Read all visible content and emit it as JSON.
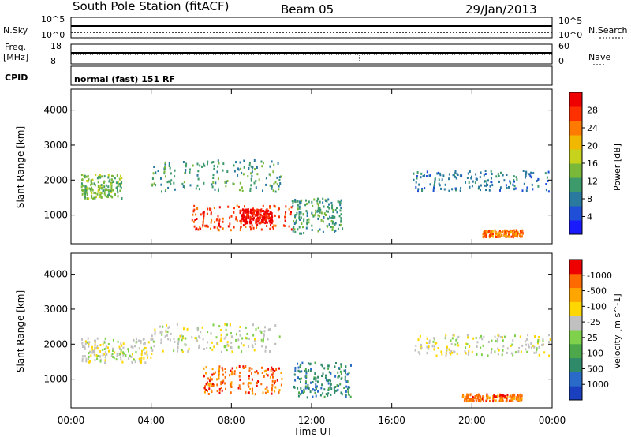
{
  "header": {
    "station": "South Pole Station (fitACF)",
    "beam": "Beam 05",
    "date": "29/Jan/2013"
  },
  "top_panels": {
    "nsky_label": "N.Sky",
    "nsky_ticks": [
      "10^5",
      "10^0"
    ],
    "nsearch_label": "N.Search",
    "nsearch_ticks": [
      "10^5",
      "10^0"
    ],
    "freq_label_1": "Freq.",
    "freq_label_2": "[MHz]",
    "freq_ticks": [
      "18",
      "8"
    ],
    "nave_label": "Nave",
    "nave_ticks": [
      "60",
      "0"
    ],
    "cpid_label": "CPID",
    "cpid_value": "normal (fast) 151 RF"
  },
  "chart_data": [
    {
      "type": "heatmap",
      "name": "power",
      "ylabel": "Slant Range [km]",
      "xlabel": "Time UT",
      "x_ticks": [
        "00:00",
        "04:00",
        "08:00",
        "12:00",
        "16:00",
        "20:00",
        "00:00"
      ],
      "xlim_hours": [
        0,
        24
      ],
      "y_ticks": [
        1000,
        2000,
        3000,
        4000
      ],
      "ylim": [
        180,
        4600
      ],
      "colorbar_label": "Power [dB]",
      "colorbar_ticks": [
        "4",
        "8",
        "12",
        "16",
        "20",
        "24",
        "28"
      ],
      "colorbar_colors": [
        "#1a1aff",
        "#1f4fd6",
        "#2a7aa0",
        "#3d9a6a",
        "#7ab83a",
        "#c6d21c",
        "#f2b800",
        "#ff7a00",
        "#ff3000",
        "#ee0000"
      ],
      "regions": [
        {
          "x": [
            0.5,
            2.5
          ],
          "y": [
            1500,
            2200
          ],
          "level": 4
        },
        {
          "x": [
            4.0,
            10.5
          ],
          "y": [
            1700,
            2600
          ],
          "level": 3
        },
        {
          "x": [
            6.0,
            11.0
          ],
          "y": [
            600,
            1300
          ],
          "level": 8
        },
        {
          "x": [
            8.5,
            10.0
          ],
          "y": [
            800,
            1200
          ],
          "level": 9
        },
        {
          "x": [
            11.0,
            13.5
          ],
          "y": [
            500,
            1500
          ],
          "level": 3
        },
        {
          "x": [
            17.0,
            23.9
          ],
          "y": [
            1700,
            2300
          ],
          "level": 2
        },
        {
          "x": [
            20.5,
            22.5
          ],
          "y": [
            400,
            600
          ],
          "level": 7
        }
      ]
    },
    {
      "type": "heatmap",
      "name": "velocity",
      "ylabel": "Slant Range [km]",
      "xlabel": "Time UT",
      "x_ticks": [
        "00:00",
        "04:00",
        "08:00",
        "12:00",
        "16:00",
        "20:00",
        "00:00"
      ],
      "xlim_hours": [
        0,
        24
      ],
      "y_ticks": [
        1000,
        2000,
        3000,
        4000
      ],
      "ylim": [
        180,
        4600
      ],
      "colorbar_label": "Velocity [m s^-1]",
      "colorbar_ticks": [
        "1000",
        "500",
        "100",
        "25",
        "-25",
        "-100",
        "-500",
        "-1000"
      ],
      "colorbar_colors": [
        "#1a3fbf",
        "#2a6ac8",
        "#2f8a6a",
        "#4ca84a",
        "#7fd04a",
        "#c0c0c0",
        "#ffd700",
        "#ffa500",
        "#ff6a00",
        "#ee0000"
      ],
      "regions": [
        {
          "x": [
            0.5,
            4.0
          ],
          "y": [
            1500,
            2200
          ],
          "level": 5
        },
        {
          "x": [
            4.0,
            10.5
          ],
          "y": [
            1800,
            2600
          ],
          "level": 5
        },
        {
          "x": [
            6.5,
            10.5
          ],
          "y": [
            600,
            1400
          ],
          "level": 8
        },
        {
          "x": [
            11.0,
            14.0
          ],
          "y": [
            500,
            1500
          ],
          "level": 2
        },
        {
          "x": [
            17.0,
            23.9
          ],
          "y": [
            1700,
            2300
          ],
          "level": 5
        },
        {
          "x": [
            19.5,
            22.5
          ],
          "y": [
            400,
            600
          ],
          "level": 8
        }
      ]
    }
  ]
}
